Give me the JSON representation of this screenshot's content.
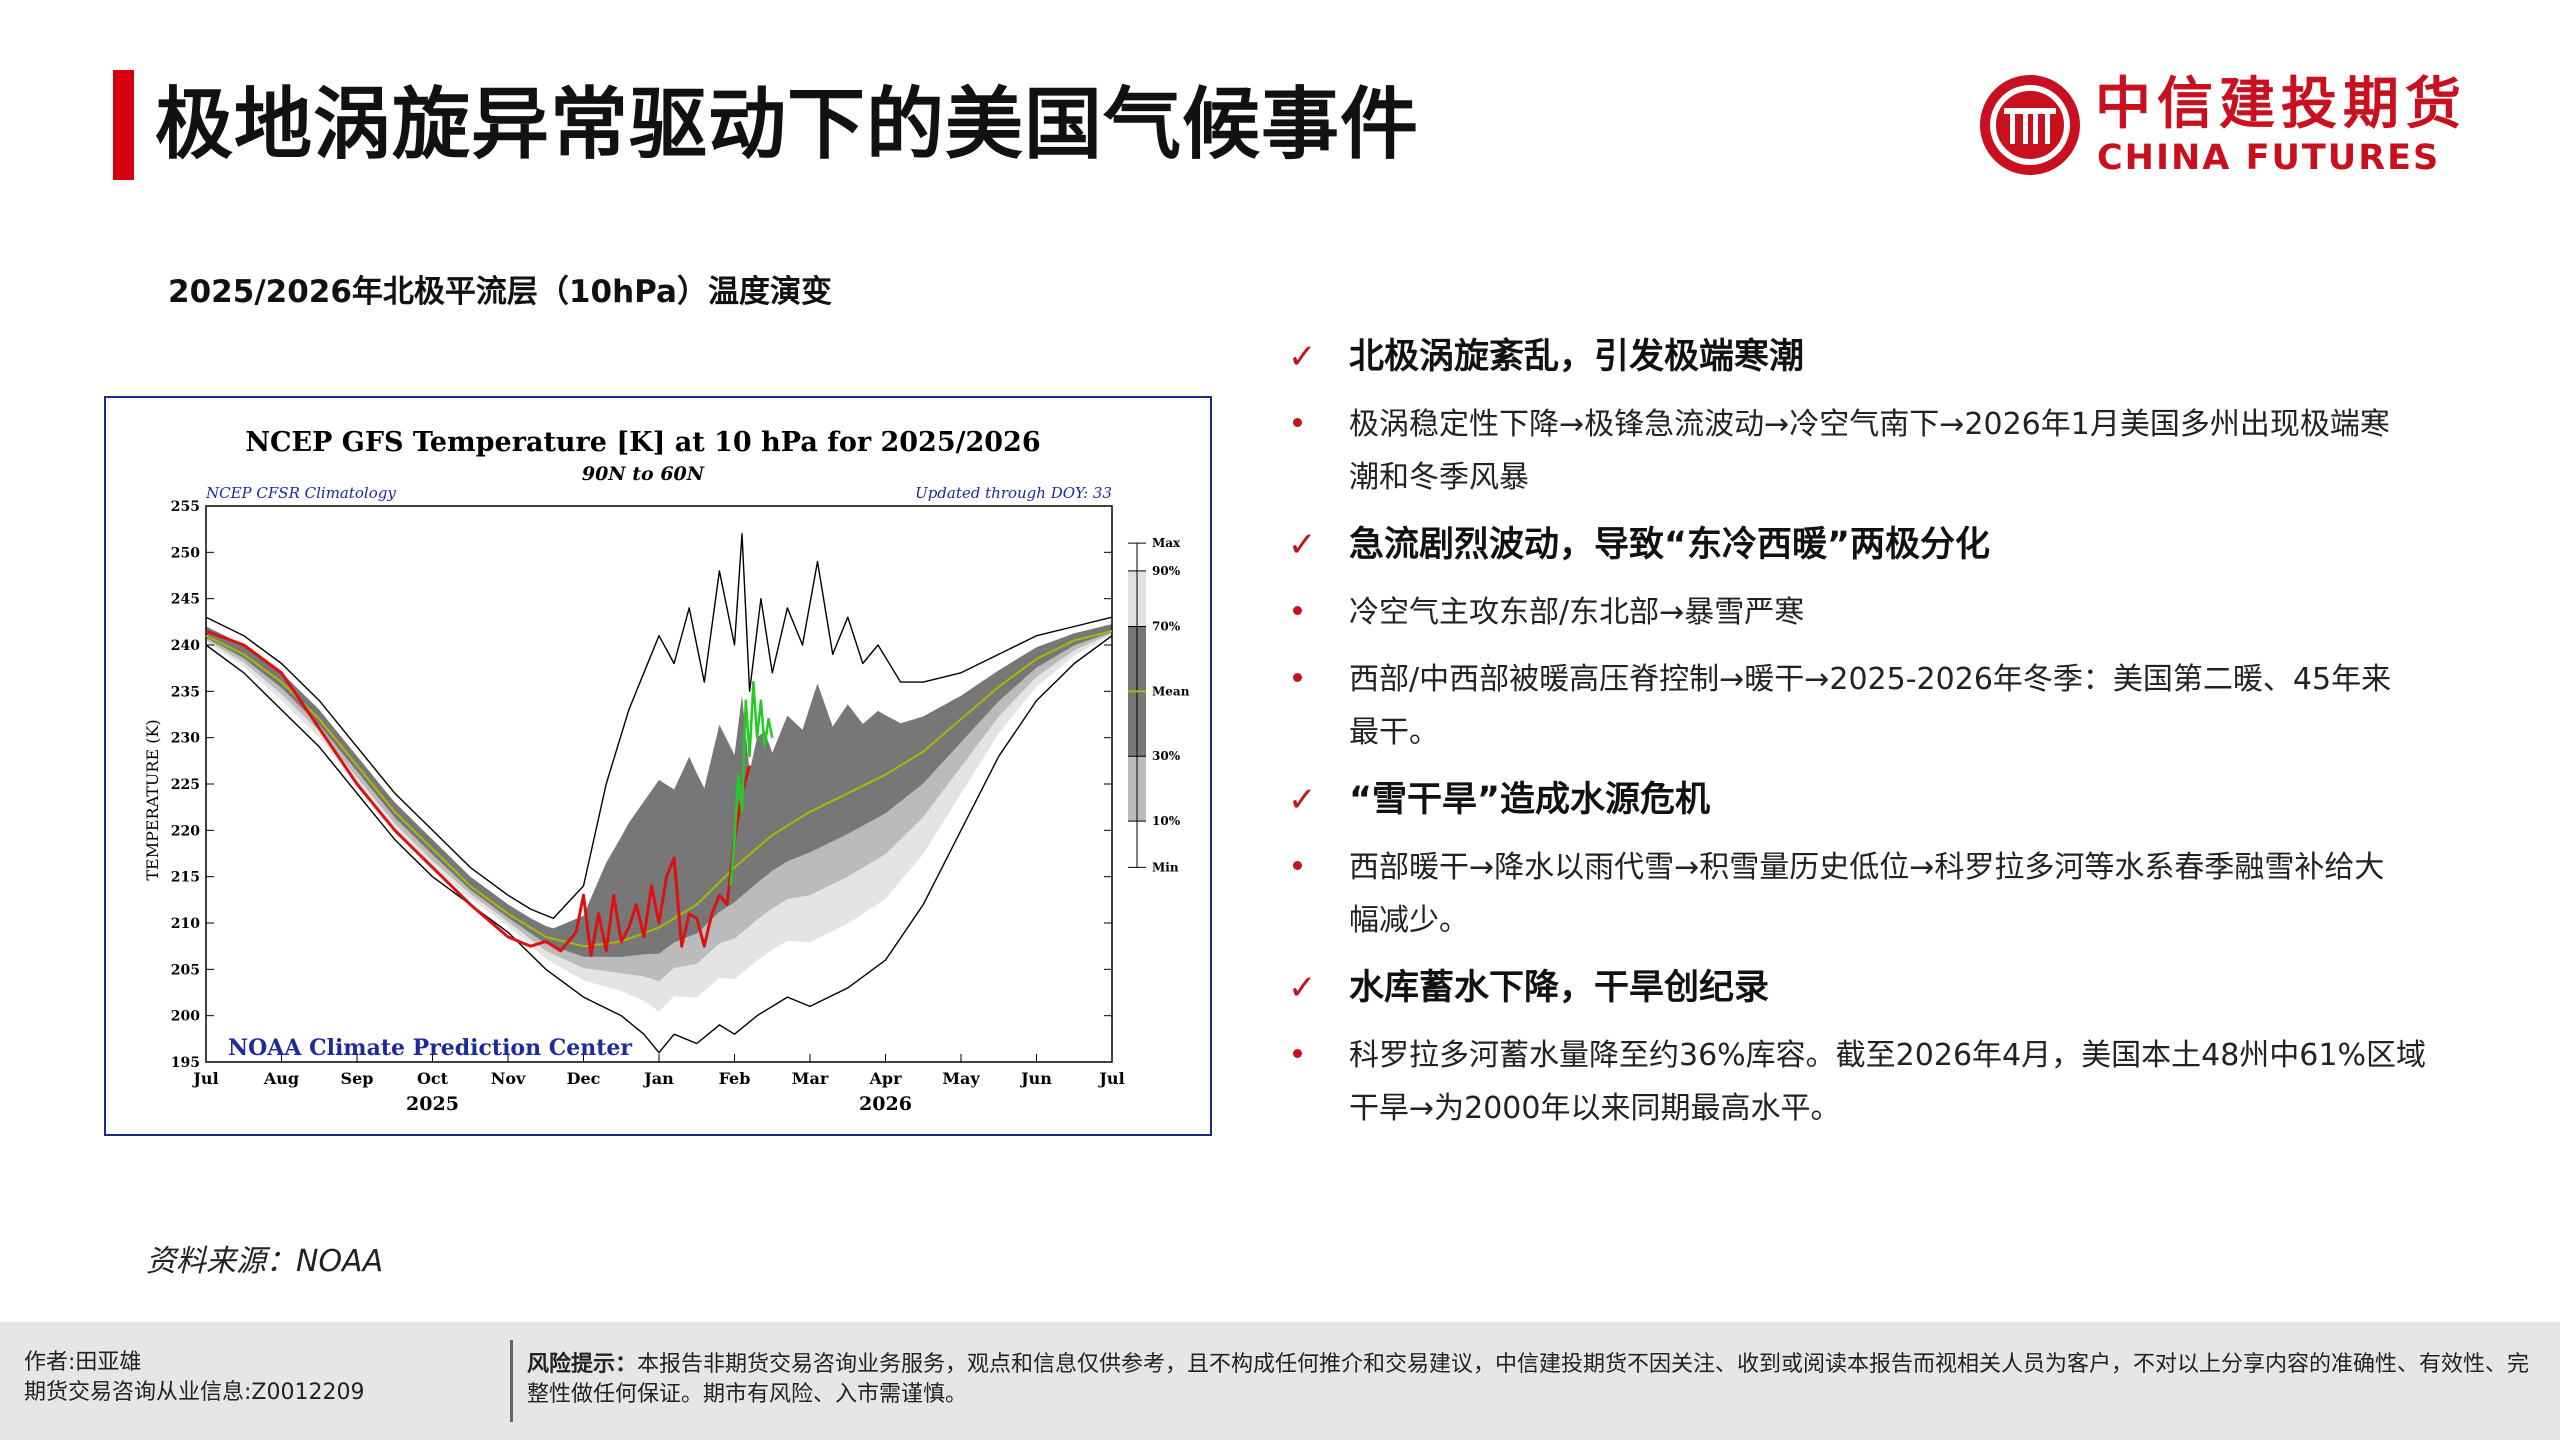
{
  "header": {
    "title": "极地涡旋异常驱动下的美国气候事件",
    "logo_cn": "中信建投期货",
    "logo_en": "CHINA FUTURES"
  },
  "chart_section": {
    "caption": "2025/2026年北极平流层（10hPa）温度演变",
    "source": "资料来源：NOAA"
  },
  "chart_data": {
    "type": "line",
    "title": "NCEP GFS Temperature [K] at 10 hPa for 2025/2026",
    "subtitle": "90N to 60N",
    "note_left": "NCEP CFSR Climatology",
    "note_right": "Updated through DOY:  33",
    "ylabel": "TEMPERATURE (K)",
    "credit": "NOAA Climate Prediction Center",
    "ylim": [
      195,
      255
    ],
    "y_ticks": [
      195,
      200,
      205,
      210,
      215,
      220,
      225,
      230,
      235,
      240,
      245,
      250,
      255
    ],
    "x_ticks": [
      "Jul",
      "Aug",
      "Sep",
      "Oct",
      "Nov",
      "Dec",
      "Jan",
      "Feb",
      "Mar",
      "Apr",
      "May",
      "Jun",
      "Jul"
    ],
    "x_years": [
      "2025",
      "2026"
    ],
    "legend": {
      "labels": [
        "Max",
        "90%",
        "70%",
        "Mean",
        "30%",
        "10%",
        "Min"
      ],
      "values": [
        251,
        248,
        242,
        235,
        228,
        221,
        216
      ]
    },
    "series": [
      {
        "name": "Max",
        "color": "#000000",
        "x": [
          0,
          0.5,
          1,
          1.5,
          2,
          2.5,
          3,
          3.5,
          4,
          4.3,
          4.6,
          5,
          5.3,
          5.6,
          6,
          6.2,
          6.4,
          6.6,
          6.8,
          7,
          7.1,
          7.2,
          7.35,
          7.5,
          7.7,
          7.9,
          8.1,
          8.3,
          8.5,
          8.7,
          8.9,
          9.2,
          9.5,
          10,
          10.5,
          11,
          11.5,
          12
        ],
        "values": [
          243,
          241,
          238,
          234,
          229,
          224,
          220,
          216,
          213,
          211.5,
          210.5,
          214,
          225,
          233,
          241,
          238,
          244,
          236,
          248,
          240,
          252,
          235,
          245,
          237,
          244,
          240,
          249,
          239,
          243,
          238,
          240,
          236,
          236,
          237,
          239,
          241,
          242,
          243
        ]
      },
      {
        "name": "Min",
        "color": "#000000",
        "x": [
          0,
          0.5,
          1,
          1.5,
          2,
          2.5,
          3,
          3.5,
          4,
          4.5,
          5,
          5.5,
          5.8,
          6,
          6.2,
          6.5,
          6.8,
          7,
          7.3,
          7.7,
          8,
          8.5,
          9,
          9.5,
          10,
          10.5,
          11,
          11.5,
          12
        ],
        "values": [
          240,
          237,
          233,
          229,
          224,
          219,
          215,
          212,
          209,
          205,
          202,
          200,
          198,
          196,
          198,
          197,
          199,
          198,
          200,
          202,
          201,
          203,
          206,
          212,
          220,
          228,
          234,
          238,
          241
        ]
      },
      {
        "name": "Mean",
        "color": "#aab800",
        "x": [
          0,
          0.5,
          1,
          1.5,
          2,
          2.5,
          3,
          3.5,
          4,
          4.5,
          5,
          5.5,
          6,
          6.5,
          7,
          7.5,
          8,
          8.5,
          9,
          9.5,
          10,
          10.5,
          11,
          11.5,
          12
        ],
        "values": [
          241,
          239,
          236,
          232,
          227,
          222,
          218,
          214,
          211,
          208.5,
          207.5,
          208,
          209.5,
          212,
          216,
          219.5,
          222,
          224,
          226,
          228.5,
          232,
          235.5,
          238.5,
          240.5,
          241.5
        ]
      },
      {
        "name": "2025/2026",
        "color": "#dd1111",
        "x": [
          0,
          0.5,
          1,
          1.5,
          2,
          2.5,
          3,
          3.5,
          4,
          4.3,
          4.5,
          4.7,
          4.9,
          5,
          5.1,
          5.2,
          5.3,
          5.4,
          5.5,
          5.6,
          5.7,
          5.8,
          5.9,
          6,
          6.1,
          6.2,
          6.3,
          6.4,
          6.5,
          6.6,
          6.7,
          6.8,
          6.9,
          7,
          7.1,
          7.2
        ],
        "values": [
          241.5,
          240,
          237,
          231,
          225,
          220,
          216,
          212,
          208.5,
          207.5,
          208,
          207,
          209,
          213,
          206.5,
          211,
          207,
          213,
          208,
          209.5,
          212,
          208.5,
          214,
          210,
          215,
          217,
          207.5,
          211,
          210.5,
          207.5,
          211,
          213,
          212,
          219,
          224,
          227
        ]
      },
      {
        "name": "GFS forecast",
        "color": "#22cc22",
        "x": [
          6.95,
          7.0,
          7.05,
          7.1,
          7.15,
          7.2,
          7.25,
          7.3,
          7.35,
          7.4,
          7.45,
          7.5
        ],
        "values": [
          214,
          219,
          226,
          222,
          234,
          228,
          236,
          230,
          234,
          229,
          232,
          230
        ]
      }
    ]
  },
  "bullets": [
    {
      "type": "head",
      "text": "北极涡旋紊乱，引发极端寒潮"
    },
    {
      "type": "sub",
      "lines": [
        "极涡稳定性下降→极锋急流波动→冷空气南下→2026年1月美国多州出现极端寒",
        "潮和冬季风暴"
      ]
    },
    {
      "type": "head",
      "text": "急流剧烈波动，导致“东冷西暖”两极分化"
    },
    {
      "type": "sub",
      "lines": [
        "冷空气主攻东部/东北部→暴雪严寒"
      ]
    },
    {
      "type": "sub",
      "lines": [
        "西部/中西部被暖高压脊控制→暖干→2025-2026年冬季：美国第二暖、45年来",
        "最干。"
      ]
    },
    {
      "type": "head",
      "text": "“雪干旱”造成水源危机"
    },
    {
      "type": "sub",
      "lines": [
        "西部暖干→降水以雨代雪→积雪量历史低位→科罗拉多河等水系春季融雪补给大",
        "幅减少。"
      ]
    },
    {
      "type": "head",
      "text": "水库蓄水下降，干旱创纪录"
    },
    {
      "type": "sub",
      "lines": [
        "科罗拉多河蓄水量降至约36%库容。截至2026年4月，美国本土48州中61%区域",
        "干旱→为2000年以来同期最高水平。"
      ]
    }
  ],
  "footer": {
    "author": "作者:田亚雄",
    "license": "期货交易咨询从业信息:Z0012209",
    "risk_label": "风险提示：",
    "risk_text": "本报告非期货交易咨询业务服务，观点和信息仅供参考，且不构成任何推介和交易建议，中信建投期货不因关注、收到或阅读本报告而视相关人员为客户，不对以上分享内容的准确性、有效性、完整性做任何保证。期市有风险、入市需谨慎。"
  }
}
